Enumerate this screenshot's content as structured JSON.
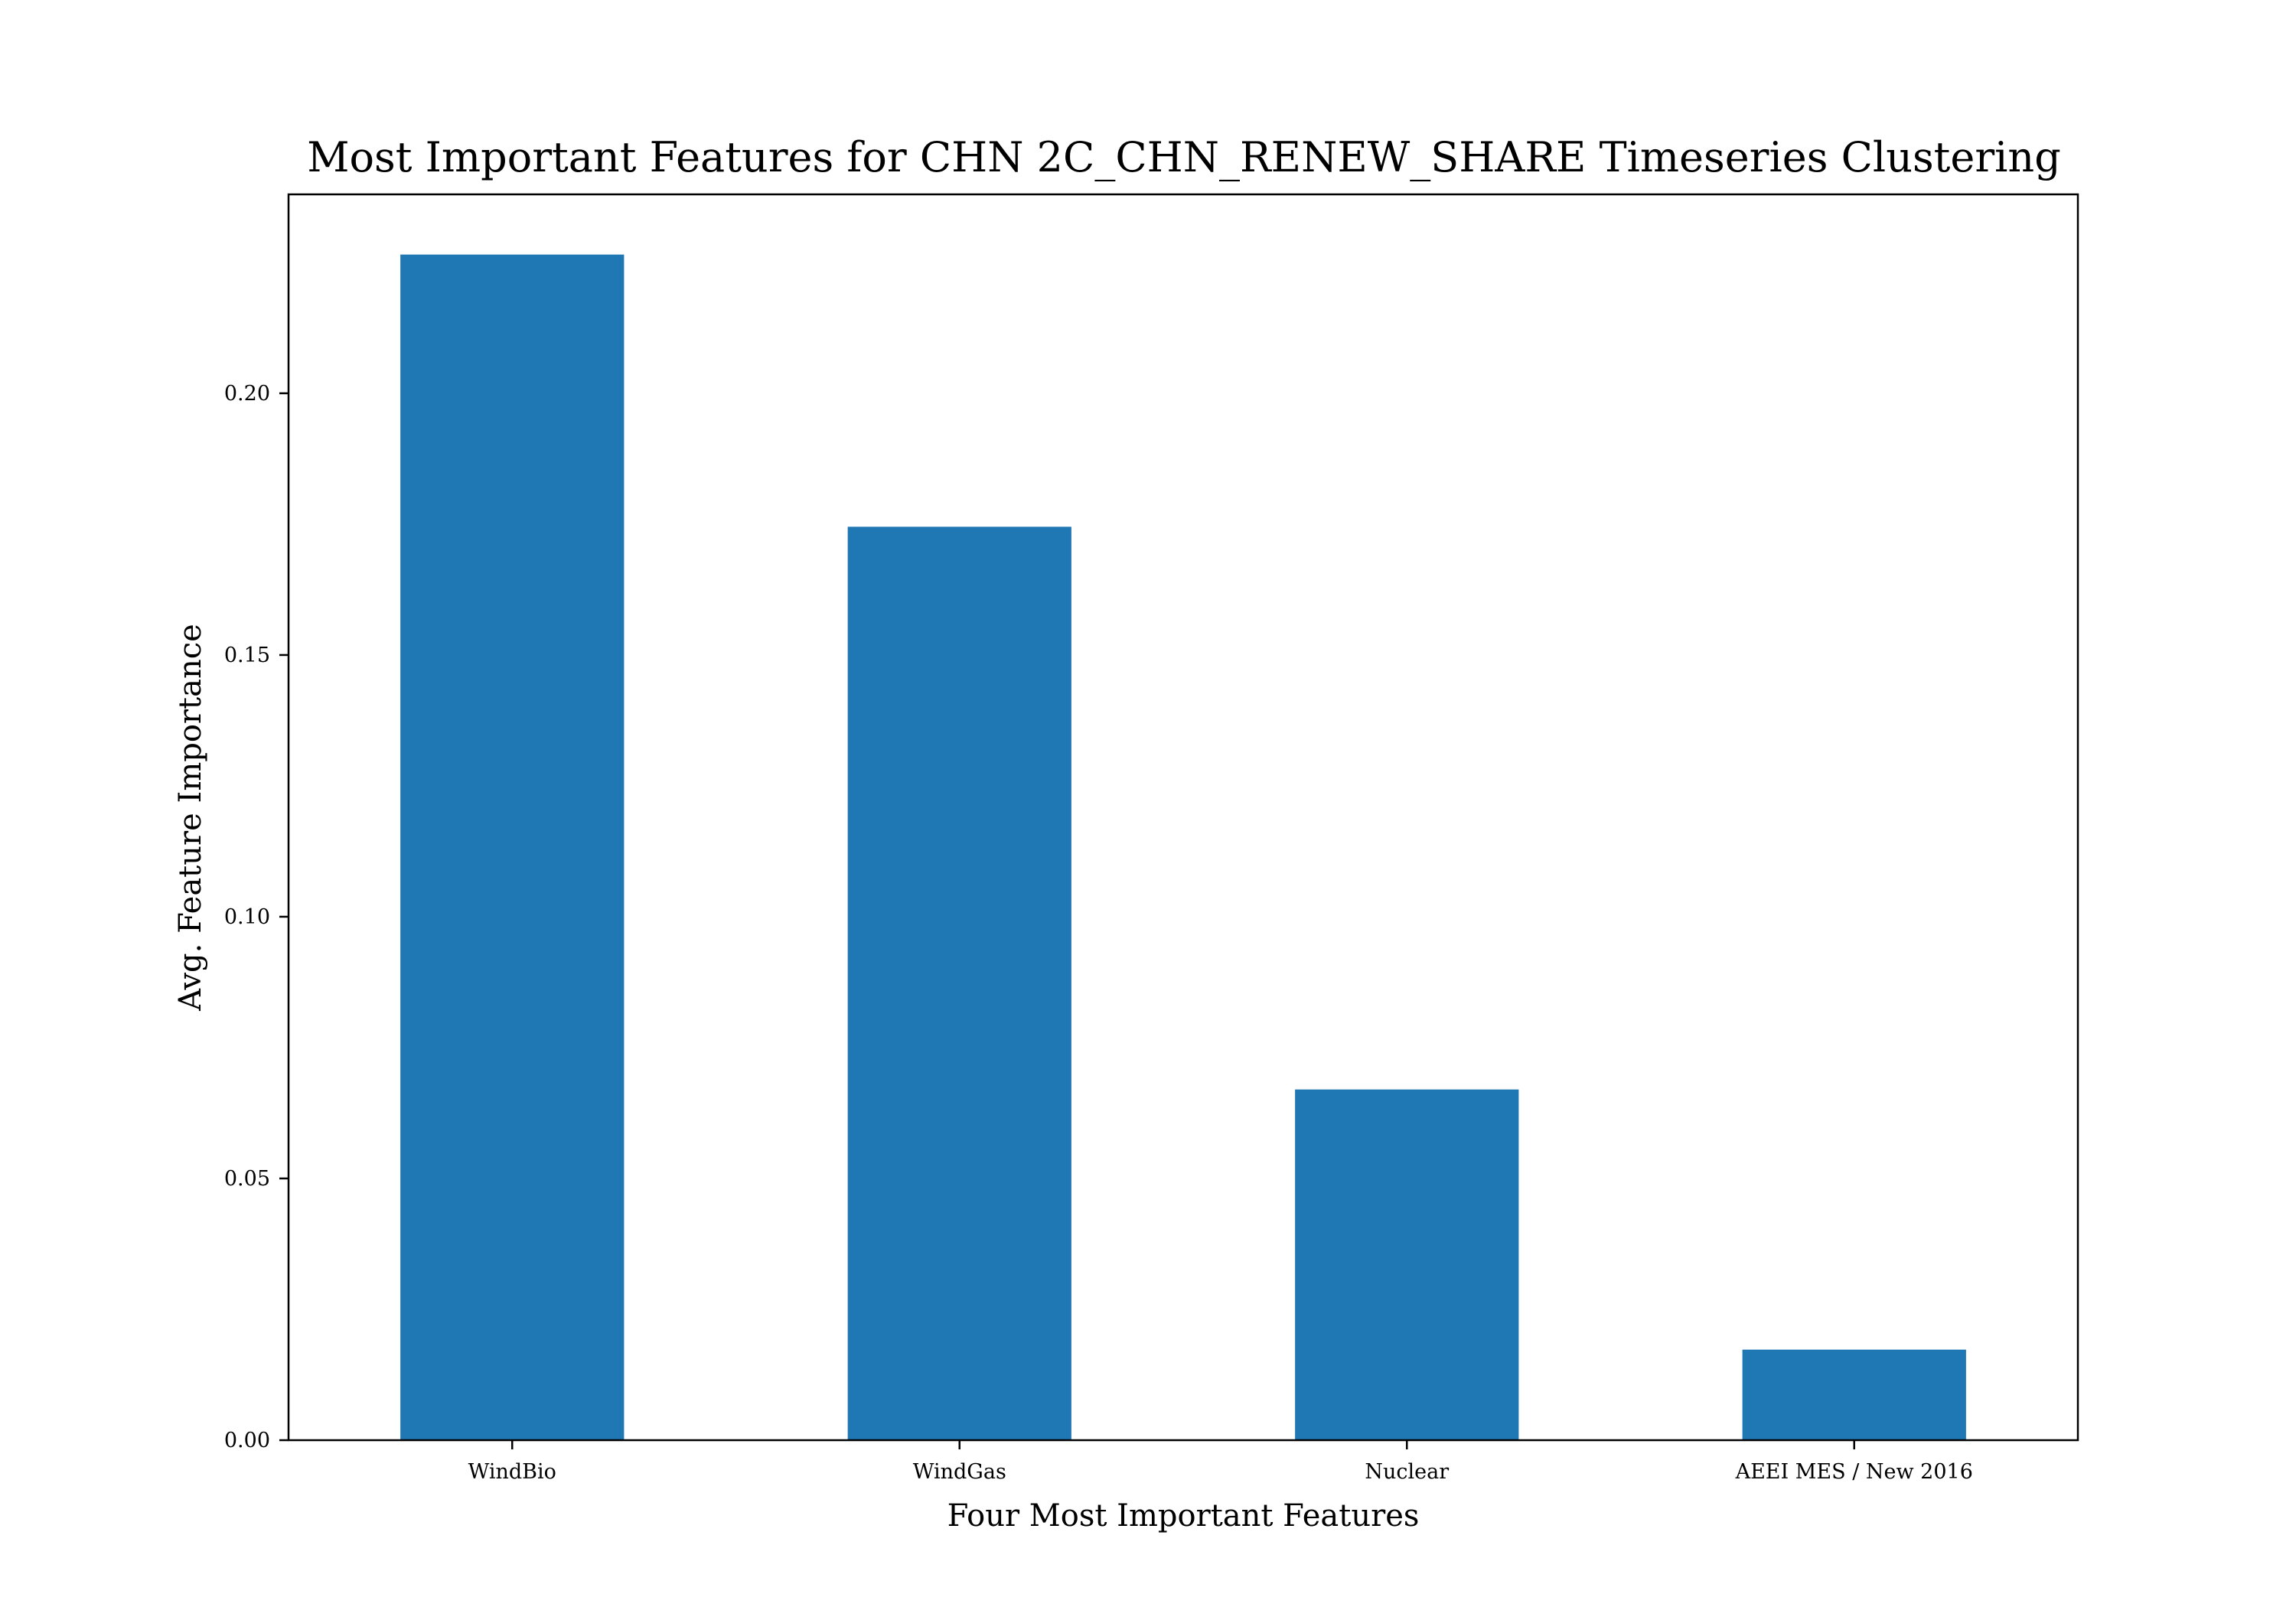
{
  "chart_data": {
    "type": "bar",
    "title": "Most Important Features for CHN 2C_CHN_RENEW_SHARE Timeseries Clustering",
    "xlabel": "Four Most Important Features",
    "ylabel": "Avg. Feature Importance",
    "categories": [
      "WindBio",
      "WindGas",
      "Nuclear",
      "AEEI MES / New 2016"
    ],
    "values": [
      0.2265,
      0.1745,
      0.067,
      0.0173
    ],
    "ylim": [
      0,
      0.238
    ],
    "yticks": [
      0.0,
      0.05,
      0.1,
      0.15,
      0.2
    ],
    "ytick_labels": [
      "0.00",
      "0.05",
      "0.10",
      "0.15",
      "0.20"
    ],
    "bar_color": "#1f77b4",
    "grid": false,
    "legend": "none"
  }
}
